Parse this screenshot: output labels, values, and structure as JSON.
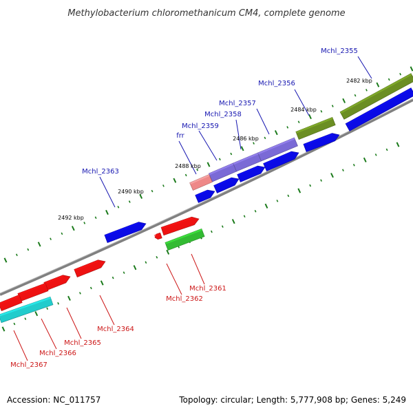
{
  "title": "Methylobacterium chloromethanicum CM4, complete genome",
  "footer": {
    "accession": "Accession: NC_011757",
    "summary": "Topology: circular; Length: 5,777,908 bp; Genes: 5,249"
  },
  "colors": {
    "backbone": "#808080",
    "tick": "#1a7a1a",
    "label_forward": "#1515b0",
    "label_reverse": "#cc1515",
    "cds_blue": "#0a0ae6",
    "cds_red": "#ee1111",
    "cds_green": "#33bb33",
    "cds_cyan": "#22cccc",
    "cds_olive": "#6b8e23",
    "cds_purple": "#7a6ad6",
    "cds_pink": "#ee8888"
  },
  "tick_labels": [
    {
      "id": "2482",
      "text": "2482 kbp"
    },
    {
      "id": "2484",
      "text": "2484 kbp"
    },
    {
      "id": "2486",
      "text": "2486 kbp"
    },
    {
      "id": "2488",
      "text": "2488 kbp"
    },
    {
      "id": "2490",
      "text": "2490 kbp"
    },
    {
      "id": "2492",
      "text": "2492 kbp"
    }
  ],
  "genes": [
    {
      "id": "Mchl_2355",
      "text": "Mchl_2355"
    },
    {
      "id": "Mchl_2356",
      "text": "Mchl_2356"
    },
    {
      "id": "Mchl_2357",
      "text": "Mchl_2357"
    },
    {
      "id": "Mchl_2358",
      "text": "Mchl_2358"
    },
    {
      "id": "Mchl_2359",
      "text": "Mchl_2359"
    },
    {
      "id": "frr",
      "text": "frr"
    },
    {
      "id": "Mchl_2363",
      "text": "Mchl_2363"
    },
    {
      "id": "Mchl_2361",
      "text": "Mchl_2361"
    },
    {
      "id": "Mchl_2362",
      "text": "Mchl_2362"
    },
    {
      "id": "Mchl_2364",
      "text": "Mchl_2364"
    },
    {
      "id": "Mchl_2365",
      "text": "Mchl_2365"
    },
    {
      "id": "Mchl_2366",
      "text": "Mchl_2366"
    },
    {
      "id": "Mchl_2367",
      "text": "Mchl_2367"
    }
  ]
}
